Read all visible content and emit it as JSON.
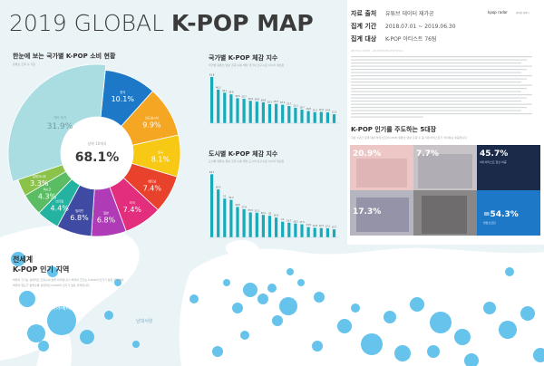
{
  "header": {
    "title_prefix": "2019 GLOBAL ",
    "title_bold": "K-POP MAP",
    "logo_main": "kpop radar",
    "logo_sub": "케이팝 레이더"
  },
  "info": {
    "rows": [
      {
        "label": "자료 출처",
        "value": "유튜브 데이터 재가공"
      },
      {
        "label": "집계 기간",
        "value": "2018.07.01 ~ 2019.06.30"
      },
      {
        "label": "집계 대상",
        "value": "K-POP 아티스트 76팀"
      }
    ],
    "fine_print": "(참여 아티스트 목록 생략 — 원본 이미지에서 판독 불가한 작은 글씨)"
  },
  "donut": {
    "heading": "한눈에 보는 국가별 K-POP 소비 현황",
    "note": "유튜브 조회 수 기준",
    "center_label": "상위 10개국",
    "center_value": "68.1%",
    "rest_label": "기타 국가",
    "rest_value": "31.9%"
  },
  "colors": {
    "donut_rest": "#a9dde1",
    "bars": "#18aab9",
    "map_dots": "#4bb8e8",
    "background": "#eaf4f7"
  },
  "bar_chart_1": {
    "heading": "국가별 K-POP 체감 지수",
    "subheading": "국가별 유튜브 영상 조회 수를 해당 국가의 인구수로 나누어 계산함"
  },
  "bar_chart_2": {
    "heading": "도시별 K-POP 체감 지수",
    "subheading": "도시별 유튜브 영상 조회 수를 해당 도시의 인구수로 나누어 계산함"
  },
  "world_section": {
    "heading_1": "전세계",
    "heading_2": "K-POP 인기 지역",
    "body_1": "버블의 크기는 상대적인 조회수의 양을 의미합니다. 버블의 크기는 K-POP의 인기가 높은 지역이며,",
    "body_2": "버블의 밀도가 높을수록 상대적인 K-POP의 인기가 높은 지역입니다."
  },
  "trends": {
    "heading": "K-POP 인기를 주도하는 5대장",
    "subheading": "지난 1년간 집계 대상 아티스트의 K-POP 유튜브 영상 조회 수 중 5대 아티스트가 차지하는 비중입니다",
    "tile_1_pct": "20.9%",
    "tile_2_pct": "7.7%",
    "tile_3_pct": "45.7%",
    "tile_3_sub": "5대 아티스트 합산 비중",
    "tile_4_pct": "17.3%",
    "tile_5_pct": "=54.3%",
    "tile_5_sub": "방탄소년단"
  },
  "map_labels": {
    "north_america": "북아메리카",
    "asia": "아시아",
    "africa": "아프리카",
    "ocean": "남대서양"
  },
  "chart_data": [
    {
      "type": "pie",
      "title": "한눈에 보는 국가별 K-POP 소비 현황",
      "categories": [
        "한국",
        "인도네시아",
        "태국",
        "베트남",
        "미국",
        "일본",
        "필리핀",
        "브라질",
        "멕시코",
        "말레이시아",
        "기타 국가"
      ],
      "values": [
        10.1,
        9.9,
        8.1,
        7.4,
        7.4,
        6.8,
        6.8,
        4.4,
        4.3,
        3.3,
        31.9
      ],
      "colors": [
        "#1d79c7",
        "#f5a623",
        "#f7c814",
        "#e8412c",
        "#e22e7d",
        "#b03bb6",
        "#3f4aa3",
        "#25b3a1",
        "#5bbd63",
        "#8bc34a",
        "#a9dde1"
      ],
      "center_total": 68.1
    },
    {
      "type": "bar",
      "title": "국가별 K-POP 체감 지수",
      "categories": [
        "",
        "",
        "",
        "",
        "",
        "",
        "",
        "",
        "",
        "",
        "",
        "",
        "",
        "",
        "",
        "",
        "",
        "",
        "",
        ""
      ],
      "values": [
        63.8,
        46.3,
        42.1,
        39.8,
        34.5,
        33.7,
        30.9,
        29.8,
        28.8,
        26.3,
        26.7,
        25.4,
        23.7,
        21.3,
        18.7,
        16.8,
        15.2,
        15.6,
        14.9,
        12.3
      ],
      "ylim": [
        0,
        70
      ]
    },
    {
      "type": "bar",
      "title": "도시별 K-POP 체감 지수",
      "categories": [
        "",
        "",
        "",
        "",
        "",
        "",
        "",
        "",
        "",
        "",
        "",
        "",
        "",
        "",
        "",
        "",
        "",
        "",
        "",
        ""
      ],
      "values": [
        84.7,
        64.3,
        52.0,
        50.3,
        40.8,
        37.8,
        33.5,
        33.1,
        30.1,
        29.0,
        26.5,
        21.0,
        19.7,
        18.5,
        17.5,
        13.8,
        12.8,
        12.5,
        12.1,
        10.7
      ],
      "ylim": [
        0,
        90
      ]
    }
  ]
}
